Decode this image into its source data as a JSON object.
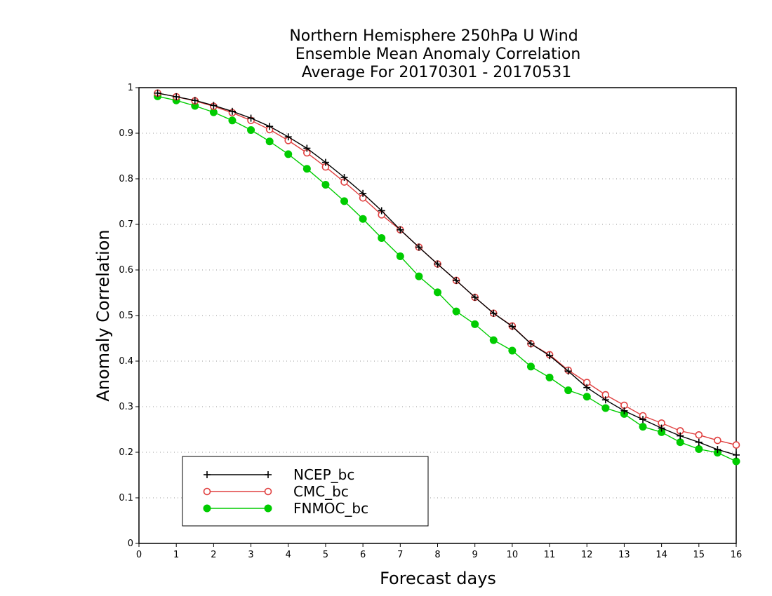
{
  "chart_data": {
    "type": "line",
    "title_lines": [
      "Northern Hemisphere 250hPa U Wind",
      "Ensemble Mean Anomaly Correlation",
      "Average For 20170301 - 20170531"
    ],
    "xlabel": "Forecast days",
    "ylabel": "Anomaly Correlation",
    "xlim": [
      0,
      16
    ],
    "ylim": [
      0,
      1
    ],
    "x_ticks": [
      "0",
      "1",
      "2",
      "3",
      "4",
      "5",
      "6",
      "7",
      "8",
      "9",
      "10",
      "11",
      "12",
      "13",
      "14",
      "15",
      "16"
    ],
    "y_ticks": [
      "0",
      "0.1",
      "0.2",
      "0.3",
      "0.4",
      "0.5",
      "0.6",
      "0.7",
      "0.8",
      "0.9",
      "1"
    ],
    "grid": "horizontal dotted",
    "legend_position": "bottom-left",
    "x": [
      0.5,
      1,
      1.5,
      2,
      2.5,
      3,
      3.5,
      4,
      4.5,
      5,
      5.5,
      6,
      6.5,
      7,
      7.5,
      8,
      8.5,
      9,
      9.5,
      10,
      10.5,
      11,
      11.5,
      12,
      12.5,
      13,
      13.5,
      14,
      14.5,
      15,
      15.5,
      16
    ],
    "series": [
      {
        "name": "NCEP_bc",
        "color": "#000000",
        "marker": "plus",
        "values": [
          0.988,
          0.98,
          0.972,
          0.961,
          0.948,
          0.933,
          0.915,
          0.892,
          0.867,
          0.836,
          0.803,
          0.768,
          0.73,
          0.688,
          0.65,
          0.613,
          0.577,
          0.54,
          0.505,
          0.476,
          0.438,
          0.412,
          0.378,
          0.342,
          0.315,
          0.291,
          0.272,
          0.253,
          0.236,
          0.222,
          0.206,
          0.194
        ]
      },
      {
        "name": "CMC_bc",
        "color": "#e04040",
        "marker": "open-circle",
        "values": [
          0.988,
          0.98,
          0.971,
          0.959,
          0.945,
          0.928,
          0.908,
          0.884,
          0.857,
          0.826,
          0.793,
          0.758,
          0.721,
          0.688,
          0.65,
          0.613,
          0.577,
          0.54,
          0.505,
          0.477,
          0.438,
          0.414,
          0.38,
          0.353,
          0.326,
          0.303,
          0.28,
          0.264,
          0.247,
          0.238,
          0.226,
          0.216
        ]
      },
      {
        "name": "FNMOC_bc",
        "color": "#00cc00",
        "marker": "filled-circle",
        "values": [
          0.981,
          0.972,
          0.96,
          0.946,
          0.928,
          0.907,
          0.882,
          0.854,
          0.822,
          0.787,
          0.751,
          0.712,
          0.67,
          0.63,
          0.586,
          0.551,
          0.509,
          0.481,
          0.446,
          0.423,
          0.388,
          0.364,
          0.336,
          0.322,
          0.297,
          0.284,
          0.256,
          0.244,
          0.222,
          0.207,
          0.199,
          0.18
        ]
      }
    ]
  }
}
